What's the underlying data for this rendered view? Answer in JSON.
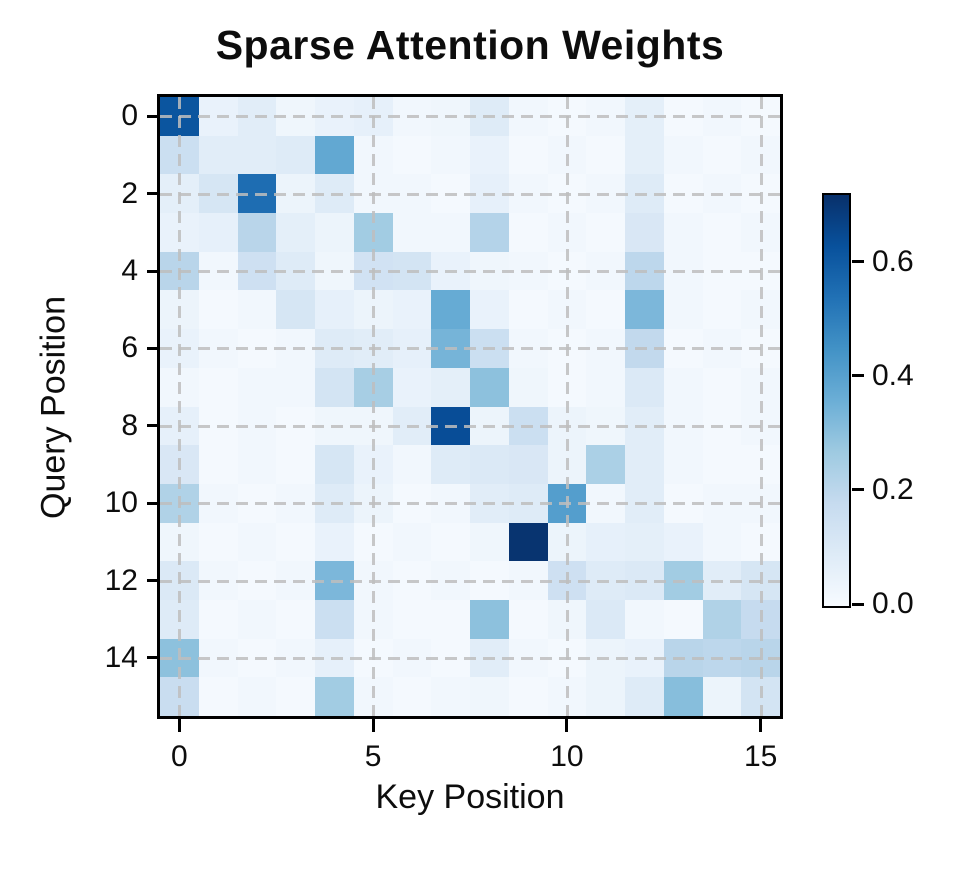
{
  "title": "Sparse Attention Weights",
  "axes": {
    "xlabel": "Key Position",
    "ylabel": "Query Position"
  },
  "colors": {
    "background": "#ffffff",
    "frame": "#000000",
    "grid": "#bebebe",
    "colormap_low": "#f7fbff",
    "colormap_high": "#08306b"
  },
  "chart_data": {
    "type": "heatmap",
    "title": "Sparse Attention Weights",
    "xlabel": "Key Position",
    "ylabel": "Query Position",
    "n_rows": 16,
    "n_cols": 16,
    "x_tick_labels": [
      "0",
      "5",
      "10",
      "15"
    ],
    "x_tick_positions": [
      0,
      5,
      10,
      15
    ],
    "y_tick_labels": [
      "0",
      "2",
      "4",
      "6",
      "8",
      "10",
      "12",
      "14"
    ],
    "y_tick_positions": [
      0,
      2,
      4,
      6,
      8,
      10,
      12,
      14
    ],
    "colormap": "Blues",
    "vmin": 0.0,
    "vmax": 0.72,
    "grid": "dashed",
    "legend_position": "right-colorbar",
    "colorbar_tick_labels": [
      "0.0",
      "0.2",
      "0.4",
      "0.6"
    ],
    "colorbar_tick_values": [
      0.0,
      0.2,
      0.4,
      0.6
    ],
    "matrix": [
      [
        0.62,
        0.05,
        0.08,
        0.03,
        0.05,
        0.06,
        0.02,
        0.03,
        0.09,
        0.02,
        0.01,
        0.02,
        0.07,
        0.01,
        0.02,
        0.01
      ],
      [
        0.16,
        0.08,
        0.08,
        0.09,
        0.38,
        0.02,
        0.01,
        0.02,
        0.05,
        0.01,
        0.02,
        0.01,
        0.07,
        0.02,
        0.01,
        0.02
      ],
      [
        0.07,
        0.12,
        0.55,
        0.04,
        0.09,
        0.02,
        0.02,
        0.01,
        0.06,
        0.02,
        0.01,
        0.02,
        0.09,
        0.01,
        0.02,
        0.01
      ],
      [
        0.05,
        0.06,
        0.21,
        0.07,
        0.04,
        0.26,
        0.02,
        0.02,
        0.22,
        0.01,
        0.02,
        0.01,
        0.11,
        0.02,
        0.01,
        0.02
      ],
      [
        0.21,
        0.02,
        0.15,
        0.09,
        0.03,
        0.14,
        0.13,
        0.05,
        0.03,
        0.02,
        0.01,
        0.02,
        0.2,
        0.02,
        0.01,
        0.01
      ],
      [
        0.04,
        0.01,
        0.02,
        0.12,
        0.06,
        0.04,
        0.05,
        0.37,
        0.05,
        0.01,
        0.02,
        0.01,
        0.33,
        0.02,
        0.01,
        0.02
      ],
      [
        0.05,
        0.02,
        0.01,
        0.02,
        0.09,
        0.08,
        0.06,
        0.34,
        0.16,
        0.02,
        0.01,
        0.02,
        0.19,
        0.01,
        0.02,
        0.01
      ],
      [
        0.02,
        0.01,
        0.02,
        0.02,
        0.13,
        0.25,
        0.05,
        0.07,
        0.3,
        0.03,
        0.01,
        0.02,
        0.1,
        0.02,
        0.01,
        0.02
      ],
      [
        0.06,
        0.01,
        0.02,
        0.01,
        0.03,
        0.03,
        0.08,
        0.64,
        0.04,
        0.16,
        0.04,
        0.03,
        0.08,
        0.02,
        0.01,
        0.02
      ],
      [
        0.11,
        0.01,
        0.02,
        0.01,
        0.12,
        0.05,
        0.02,
        0.09,
        0.1,
        0.11,
        0.04,
        0.24,
        0.08,
        0.02,
        0.01,
        0.01
      ],
      [
        0.23,
        0.02,
        0.01,
        0.02,
        0.09,
        0.04,
        0.01,
        0.02,
        0.08,
        0.09,
        0.41,
        0.02,
        0.08,
        0.01,
        0.02,
        0.02
      ],
      [
        0.03,
        0.01,
        0.02,
        0.01,
        0.05,
        0.01,
        0.02,
        0.01,
        0.03,
        0.71,
        0.04,
        0.06,
        0.07,
        0.05,
        0.02,
        0.01
      ],
      [
        0.1,
        0.02,
        0.01,
        0.02,
        0.33,
        0.02,
        0.01,
        0.02,
        0.01,
        0.02,
        0.15,
        0.09,
        0.1,
        0.26,
        0.08,
        0.12
      ],
      [
        0.09,
        0.01,
        0.02,
        0.01,
        0.16,
        0.02,
        0.01,
        0.01,
        0.3,
        0.01,
        0.03,
        0.1,
        0.02,
        0.01,
        0.23,
        0.18
      ],
      [
        0.3,
        0.02,
        0.01,
        0.02,
        0.06,
        0.01,
        0.02,
        0.01,
        0.08,
        0.02,
        0.01,
        0.04,
        0.05,
        0.21,
        0.2,
        0.21
      ],
      [
        0.17,
        0.01,
        0.02,
        0.01,
        0.26,
        0.02,
        0.01,
        0.02,
        0.03,
        0.01,
        0.02,
        0.04,
        0.09,
        0.31,
        0.04,
        0.13
      ]
    ]
  }
}
